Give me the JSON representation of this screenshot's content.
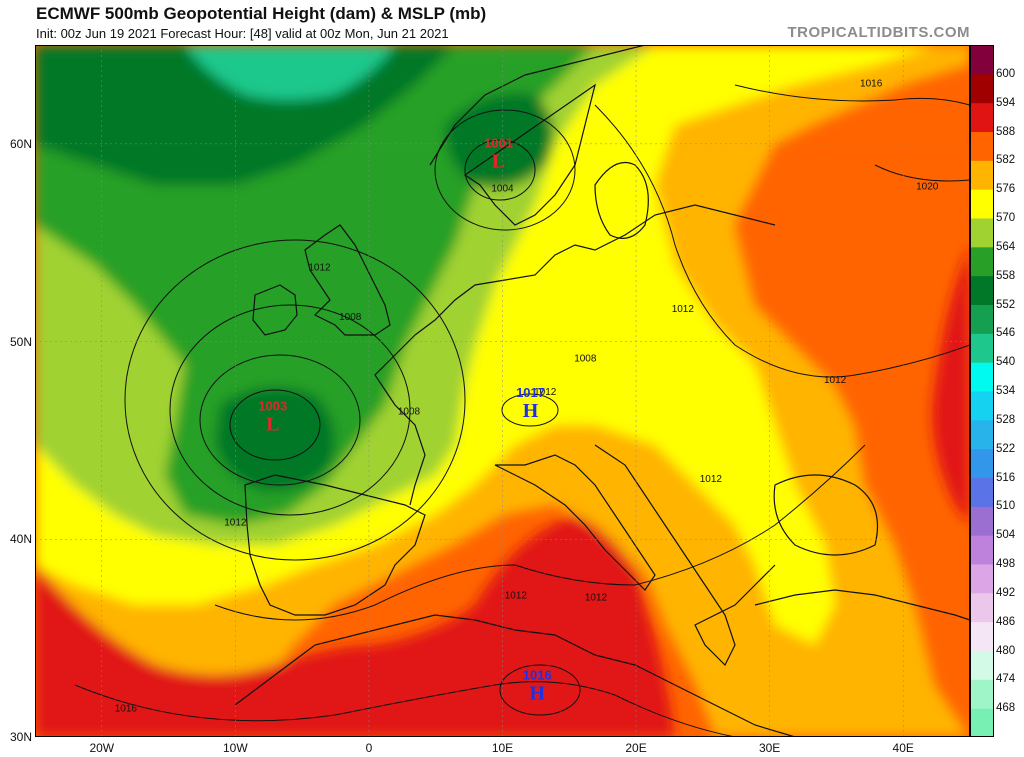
{
  "header": {
    "title": "ECMWF 500mb Geopotential Height (dam) & MSLP (mb)",
    "subtitle": "Init: 00z Jun 19 2021   Forecast Hour: [48]   valid at 00z Mon, Jun 21 2021",
    "credit": "TROPICALTIDBITS.COM"
  },
  "map": {
    "lon_range": [
      -25,
      45
    ],
    "lat_range": [
      30,
      65
    ],
    "lat_ticks": [
      {
        "value": 30,
        "label": "30N"
      },
      {
        "value": 40,
        "label": "40N"
      },
      {
        "value": 50,
        "label": "50N"
      },
      {
        "value": 60,
        "label": "60N"
      }
    ],
    "lon_ticks": [
      {
        "value": -20,
        "label": "20W"
      },
      {
        "value": -10,
        "label": "10W"
      },
      {
        "value": 0,
        "label": "0"
      },
      {
        "value": 10,
        "label": "10E"
      },
      {
        "value": 20,
        "label": "20E"
      },
      {
        "value": 30,
        "label": "30E"
      },
      {
        "value": 40,
        "label": "40E"
      }
    ],
    "pressure_centers": [
      {
        "type": "L",
        "value": "1003",
        "lon": -7.2,
        "lat": 45.9,
        "color": "#e0282a"
      },
      {
        "type": "L",
        "value": "1001",
        "lon": 9.7,
        "lat": 59.2,
        "color": "#e0282a"
      },
      {
        "type": "H",
        "value": "1016",
        "lon": 12.6,
        "lat": 32.3,
        "color": "#2030e0"
      },
      {
        "type": "H",
        "value": "1017",
        "lon": 12.1,
        "lat": 46.6,
        "color": "#2030e0"
      }
    ],
    "isobar_labels": [
      {
        "text": "1012",
        "lon": -3.7,
        "lat": 53.6
      },
      {
        "text": "1008",
        "lon": -1.4,
        "lat": 51.1
      },
      {
        "text": "1008",
        "lon": 3.0,
        "lat": 46.3
      },
      {
        "text": "1012",
        "lon": -10.0,
        "lat": 40.7
      },
      {
        "text": "1004",
        "lon": 10.0,
        "lat": 57.6
      },
      {
        "text": "1016",
        "lon": 37.6,
        "lat": 62.9
      },
      {
        "text": "1020",
        "lon": 41.8,
        "lat": 57.7
      },
      {
        "text": "1012",
        "lon": 23.5,
        "lat": 51.5
      },
      {
        "text": "1008",
        "lon": 16.2,
        "lat": 49.0
      },
      {
        "text": "1012",
        "lon": 13.2,
        "lat": 47.3
      },
      {
        "text": "1012",
        "lon": 34.9,
        "lat": 47.9
      },
      {
        "text": "1012",
        "lon": 25.6,
        "lat": 42.9
      },
      {
        "text": "1012",
        "lon": 11.0,
        "lat": 37.0
      },
      {
        "text": "1012",
        "lon": 17.0,
        "lat": 36.9
      },
      {
        "text": "1016",
        "lon": -18.2,
        "lat": 31.3
      }
    ],
    "colors": {
      "ocean_base": "#e06000",
      "coastline": "#111111",
      "isobar": "#111111",
      "border": "#444444"
    }
  },
  "colorbar": {
    "levels": [
      "468",
      "474",
      "480",
      "486",
      "492",
      "498",
      "504",
      "510",
      "516",
      "522",
      "528",
      "534",
      "540",
      "546",
      "552",
      "558",
      "564",
      "570",
      "576",
      "582",
      "588",
      "594",
      "600"
    ],
    "colors": [
      "#78f0b4",
      "#a0f5c8",
      "#d2fae6",
      "#f5e6f5",
      "#ebc8eb",
      "#dca5e6",
      "#be82dc",
      "#9b6ed2",
      "#5a73e6",
      "#3296ea",
      "#28b4eb",
      "#14d2f0",
      "#00faf0",
      "#1ec88c",
      "#14a050",
      "#007828",
      "#28a028",
      "#a0d232",
      "#ffff00",
      "#ffb400",
      "#ff6400",
      "#e11414",
      "#a00000",
      "#82003c"
    ]
  }
}
